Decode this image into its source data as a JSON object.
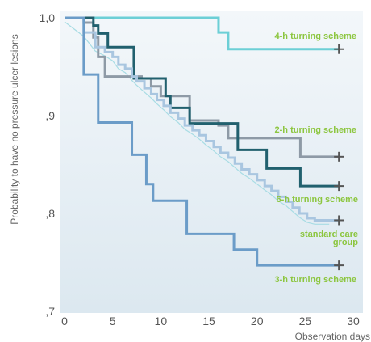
{
  "chart_data": {
    "type": "line",
    "title": "",
    "xlabel": "Observation days",
    "ylabel": "Probability to have no pressure ulcer lesions",
    "xlim": [
      0,
      31
    ],
    "ylim": [
      0.7,
      1.0
    ],
    "x_ticks": [
      0,
      5,
      10,
      15,
      20,
      25,
      30
    ],
    "x_tick_labels": [
      "0",
      "5",
      "10",
      "15",
      "20",
      "25",
      "30"
    ],
    "y_ticks": [
      0.7,
      0.8,
      0.9,
      1.0
    ],
    "y_tick_labels": [
      ",7",
      ",8",
      ",9",
      "1,0"
    ],
    "grid": false,
    "background": "light blue gradient",
    "censor_marker": "+",
    "series": [
      {
        "name": "4-h turning scheme",
        "color": "#6ccfd6",
        "label_lines": [
          "4-h turning scheme"
        ],
        "x": [
          0,
          16,
          16,
          17,
          17,
          28.5
        ],
        "y": [
          1.0,
          1.0,
          0.985,
          0.985,
          0.968,
          0.968
        ],
        "censor_x": 28.5
      },
      {
        "name": "2-h turning scheme",
        "color": "#8e9aa6",
        "label_lines": [
          "2-h turning scheme"
        ],
        "x": [
          0,
          2,
          2,
          3,
          3,
          3.5,
          3.5,
          4.2,
          4.2,
          8,
          8,
          9,
          9,
          10,
          10,
          13,
          13,
          16,
          16,
          17,
          17,
          24.5,
          24.5,
          28.5
        ],
        "y": [
          1.0,
          1.0,
          0.995,
          0.995,
          0.98,
          0.98,
          0.96,
          0.96,
          0.94,
          0.94,
          0.938,
          0.938,
          0.93,
          0.93,
          0.92,
          0.92,
          0.895,
          0.895,
          0.89,
          0.89,
          0.877,
          0.877,
          0.858,
          0.858
        ],
        "censor_x": 28.5
      },
      {
        "name": "6-h turning scheme",
        "color": "#21606e",
        "label_lines": [
          "6-h turning scheme"
        ],
        "x": [
          0,
          3,
          3,
          3.5,
          3.5,
          4.5,
          4.5,
          7.2,
          7.2,
          10.5,
          10.5,
          11,
          11,
          13,
          13,
          18,
          18,
          21,
          21,
          24.5,
          24.5,
          28.5
        ],
        "y": [
          1.0,
          1.0,
          0.992,
          0.992,
          0.984,
          0.984,
          0.97,
          0.97,
          0.938,
          0.938,
          0.92,
          0.92,
          0.908,
          0.908,
          0.892,
          0.892,
          0.865,
          0.865,
          0.846,
          0.846,
          0.828,
          0.828
        ],
        "censor_x": 28.5
      },
      {
        "name": "standard care group",
        "color": "#a9c6e0",
        "label_lines": [
          "standard care",
          "group"
        ],
        "x": [
          0,
          2,
          2,
          3.2,
          3.2,
          4.2,
          4.2,
          5,
          5,
          5.6,
          5.6,
          6.3,
          6.3,
          7,
          7,
          7.5,
          7.5,
          8.3,
          8.3,
          9,
          9,
          9.6,
          9.6,
          10.3,
          10.3,
          11,
          11,
          11.8,
          11.8,
          12.5,
          12.5,
          13.3,
          13.3,
          14,
          14,
          14.7,
          14.7,
          15.5,
          15.5,
          16.2,
          16.2,
          17,
          17,
          17.7,
          17.7,
          18.4,
          18.4,
          19.2,
          19.2,
          20,
          20,
          20.8,
          20.8,
          21.5,
          21.5,
          22.2,
          22.2,
          23,
          23,
          23.7,
          23.7,
          24.4,
          24.4,
          25.2,
          25.2,
          26,
          26,
          26.7,
          26.7,
          27.5,
          27.5,
          28.5
        ],
        "y": [
          1.0,
          1.0,
          0.985,
          0.985,
          0.97,
          0.97,
          0.965,
          0.965,
          0.96,
          0.96,
          0.952,
          0.952,
          0.948,
          0.948,
          0.94,
          0.94,
          0.935,
          0.935,
          0.928,
          0.928,
          0.922,
          0.922,
          0.916,
          0.916,
          0.91,
          0.91,
          0.903,
          0.903,
          0.897,
          0.897,
          0.89,
          0.89,
          0.885,
          0.885,
          0.88,
          0.88,
          0.874,
          0.874,
          0.868,
          0.868,
          0.862,
          0.862,
          0.857,
          0.857,
          0.851,
          0.851,
          0.845,
          0.845,
          0.84,
          0.84,
          0.834,
          0.834,
          0.828,
          0.828,
          0.823,
          0.823,
          0.817,
          0.817,
          0.812,
          0.812,
          0.806,
          0.806,
          0.8,
          0.8,
          0.795,
          0.795,
          0.793,
          0.793,
          0.793,
          0.793,
          0.793,
          0.793
        ],
        "censor_x": 28.5
      },
      {
        "name": "3-h turning scheme",
        "color": "#6b9cc8",
        "label_lines": [
          "3-h turning scheme"
        ],
        "x": [
          0,
          2,
          2,
          3.5,
          3.5,
          7,
          7,
          8.5,
          8.5,
          9.2,
          9.2,
          12.7,
          12.7,
          17.6,
          17.6,
          20,
          20,
          28.5
        ],
        "y": [
          1.0,
          1.0,
          0.942,
          0.942,
          0.893,
          0.893,
          0.86,
          0.86,
          0.83,
          0.83,
          0.813,
          0.813,
          0.779,
          0.779,
          0.763,
          0.763,
          0.747,
          0.747
        ],
        "censor_x": 28.5
      }
    ],
    "reference_curve": {
      "color": "#a8dce4"
    }
  }
}
